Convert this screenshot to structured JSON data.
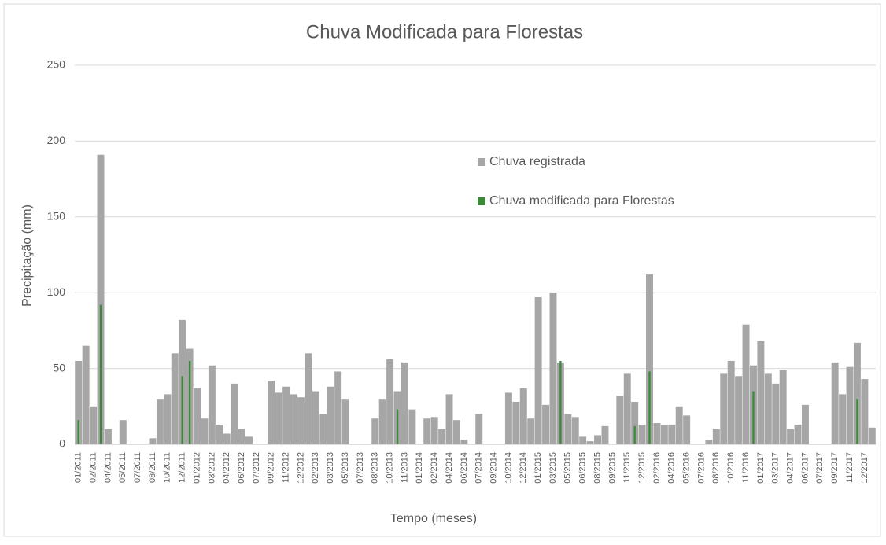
{
  "chart_data": {
    "type": "bar",
    "title": "Chuva Modificada para Florestas",
    "x_label": "Tempo (meses)",
    "y_label": "Precipitação (mm)",
    "categories": [
      "01/2011",
      null,
      "02/2011",
      null,
      "04/2011",
      null,
      "05/2011",
      null,
      "07/2011",
      null,
      "08/2011",
      null,
      "10/2011",
      null,
      "12/2011",
      null,
      "01/2012",
      null,
      "03/2012",
      null,
      "04/2012",
      null,
      "06/2012",
      null,
      "07/2012",
      null,
      "09/2012",
      null,
      "11/2012",
      null,
      "12/2012",
      null,
      "02/2013",
      null,
      "03/2013",
      null,
      "05/2013",
      null,
      "07/2013",
      null,
      "08/2013",
      null,
      "10/2013",
      null,
      "11/2013",
      null,
      "01/2014",
      null,
      "02/2014",
      null,
      "04/2014",
      null,
      "06/2014",
      null,
      "07/2014",
      null,
      "09/2014",
      null,
      "10/2014",
      null,
      "12/2014",
      null,
      "01/2015",
      null,
      "03/2015",
      null,
      "05/2015",
      null,
      "06/2015",
      null,
      "08/2015",
      null,
      "09/2015",
      null,
      "11/2015",
      null,
      "12/2015",
      null,
      "02/2016",
      null,
      "04/2016",
      null,
      "05/2016",
      null,
      "07/2016",
      null,
      "08/2016",
      null,
      "10/2016",
      null,
      "11/2016",
      null,
      "01/2017",
      null,
      "03/2017",
      null,
      "04/2017",
      null,
      "06/2017",
      null,
      "07/2017",
      null,
      "09/2017",
      null,
      "11/2017",
      null,
      "12/2017",
      null
    ],
    "series": [
      {
        "name": "Chuva registrada",
        "color": "#a6a6a6",
        "values": [
          55,
          65,
          25,
          191,
          10,
          0,
          16,
          0,
          0,
          0,
          4,
          30,
          33,
          60,
          82,
          63,
          37,
          17,
          52,
          13,
          7,
          40,
          10,
          5,
          0,
          0,
          42,
          34,
          38,
          33,
          31,
          60,
          35,
          20,
          38,
          48,
          30,
          0,
          0,
          0,
          17,
          30,
          56,
          35,
          54,
          23,
          0,
          17,
          18,
          10,
          33,
          16,
          3,
          0,
          20,
          0,
          0,
          0,
          34,
          28,
          37,
          17,
          97,
          26,
          100,
          54,
          20,
          18,
          5,
          2,
          6,
          12,
          0,
          32,
          47,
          28,
          13,
          112,
          14,
          13,
          13,
          25,
          19,
          0,
          0,
          3,
          10,
          47,
          55,
          45,
          79,
          52,
          68,
          47,
          40,
          49,
          10,
          13,
          26,
          0,
          0,
          0,
          54,
          33,
          51,
          67,
          43,
          11
        ]
      },
      {
        "name": "Chuva modificada para Florestas",
        "color": "#3a8a3a",
        "values": [
          16,
          0,
          0,
          92,
          0,
          0,
          0,
          0,
          0,
          0,
          0,
          0,
          0,
          0,
          45,
          55,
          0,
          0,
          0,
          0,
          0,
          0,
          0,
          0,
          0,
          0,
          0,
          0,
          0,
          0,
          0,
          0,
          0,
          0,
          0,
          0,
          0,
          0,
          0,
          0,
          0,
          0,
          0,
          23,
          0,
          0,
          0,
          0,
          0,
          0,
          0,
          0,
          0,
          0,
          0,
          0,
          0,
          0,
          0,
          0,
          0,
          0,
          0,
          0,
          0,
          55,
          0,
          0,
          0,
          0,
          0,
          0,
          0,
          0,
          0,
          12,
          0,
          48,
          0,
          0,
          0,
          0,
          0,
          0,
          0,
          0,
          0,
          0,
          0,
          0,
          0,
          35,
          0,
          0,
          0,
          0,
          0,
          0,
          0,
          0,
          0,
          0,
          0,
          0,
          0,
          30,
          0,
          0
        ]
      }
    ],
    "ylim": [
      0,
      250
    ],
    "yticks": [
      0,
      50,
      100,
      150,
      200,
      250
    ],
    "grid": true
  }
}
